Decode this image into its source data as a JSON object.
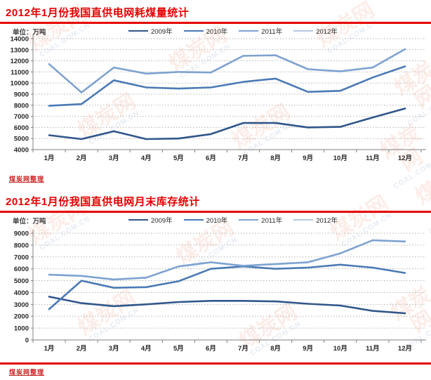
{
  "page": {
    "watermark": {
      "cn": "煤炭网",
      "en": "COAL.COM.CN"
    }
  },
  "charts": [
    {
      "title": "2012年1月份我国直供电网耗煤量统计",
      "unit_label": "单位：万吨",
      "credit": "煤炭网整理",
      "chart_data": {
        "type": "line",
        "title": "2012年1月份我国直供电网耗煤量统计",
        "ylabel": "万吨",
        "categories": [
          "1月",
          "2月",
          "3月",
          "4月",
          "5月",
          "6月",
          "7月",
          "8月",
          "9月",
          "10月",
          "11月",
          "12月"
        ],
        "ylim": [
          4000,
          14000
        ],
        "y_tick_step": 1000,
        "y_ticks": [
          "14000",
          "13000",
          "12000",
          "11000",
          "10000",
          "9000",
          "8000",
          "7000",
          "6000",
          "5000",
          "4000"
        ],
        "grid": "horizontal-dotted",
        "legend_position": "top",
        "series": [
          {
            "name": "2009年",
            "color": "#31568a",
            "values": [
              5300,
              4950,
              5650,
              4950,
              5000,
              5400,
              6400,
              6400,
              6000,
              6050,
              6900,
              7700
            ]
          },
          {
            "name": "2010年",
            "color": "#4a7ab5",
            "values": [
              7950,
              8100,
              10250,
              9600,
              9500,
              9600,
              10100,
              10400,
              9200,
              9300,
              10500,
              11500
            ]
          },
          {
            "name": "2011年",
            "color": "#7ea2d1",
            "values": [
              11700,
              9150,
              11400,
              10850,
              11000,
              10950,
              12450,
              12500,
              11250,
              11050,
              11400,
              13050
            ]
          },
          {
            "name": "2012年",
            "color": "#b6c8e2",
            "values": []
          }
        ]
      }
    },
    {
      "title": "2012年1月份我国直供电网月末库存统计",
      "unit_label": "单位：万吨",
      "credit": "煤炭网整理",
      "chart_data": {
        "type": "line",
        "title": "2012年1月份我国直供电网月末库存统计",
        "ylabel": "万吨",
        "categories": [
          "1月",
          "2月",
          "3月",
          "4月",
          "5月",
          "6月",
          "7月",
          "8月",
          "9月",
          "10月",
          "11月",
          "12月"
        ],
        "ylim": [
          0,
          9000
        ],
        "y_tick_step": 1000,
        "y_ticks": [
          "9000",
          "8000",
          "7000",
          "6000",
          "5000",
          "4000",
          "3000",
          "2000",
          "1000",
          "0"
        ],
        "grid": "horizontal-dotted",
        "legend_position": "top",
        "series": [
          {
            "name": "2009年",
            "color": "#31568a",
            "values": [
              3650,
              3100,
              2850,
              3000,
              3200,
              3300,
              3300,
              3250,
              3050,
              2900,
              2450,
              2250
            ]
          },
          {
            "name": "2010年",
            "color": "#4a7ab5",
            "values": [
              2600,
              5000,
              4400,
              4450,
              4950,
              6000,
              6200,
              6000,
              6100,
              6350,
              6100,
              5650
            ]
          },
          {
            "name": "2011年",
            "color": "#7ea2d1",
            "values": [
              5500,
              5400,
              5100,
              5250,
              6200,
              6550,
              6250,
              6400,
              6550,
              7300,
              8400,
              8300
            ]
          },
          {
            "name": "2012年",
            "color": "#b6c8e2",
            "values": []
          }
        ]
      }
    }
  ]
}
